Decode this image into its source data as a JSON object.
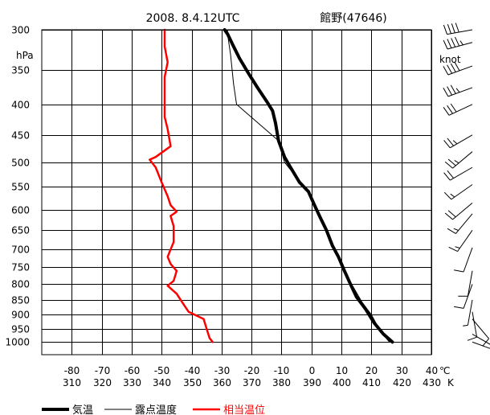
{
  "chart_data": {
    "type": "line",
    "title": "2008. 8.4.12UTC",
    "station": "館野(47646)",
    "y_unit": "hPa",
    "y_scale": "log",
    "ylim": [
      1050,
      300
    ],
    "y_ticks": [
      300,
      350,
      400,
      450,
      500,
      550,
      600,
      650,
      700,
      750,
      800,
      850,
      900,
      950,
      1000
    ],
    "x_unit_celsius": "℃",
    "x_unit_kelvin": "K",
    "xlim": [
      -90,
      40
    ],
    "x_ticks_celsius": [
      -80,
      -70,
      -60,
      -50,
      -40,
      -30,
      -20,
      -10,
      0,
      10,
      20,
      30,
      40
    ],
    "x_ticks_kelvin": [
      310,
      320,
      330,
      340,
      350,
      360,
      370,
      380,
      390,
      400,
      410,
      420,
      430
    ],
    "wind_unit": "knot",
    "grid": true,
    "legend_position": "bottom",
    "series": [
      {
        "name": "気温",
        "color": "#000000",
        "style": "thick",
        "scale": "celsius",
        "points": [
          [
            27,
            1000
          ],
          [
            24,
            970
          ],
          [
            21,
            930
          ],
          [
            18,
            880
          ],
          [
            15,
            840
          ],
          [
            13,
            800
          ],
          [
            11,
            760
          ],
          [
            9,
            720
          ],
          [
            7,
            690
          ],
          [
            5,
            650
          ],
          [
            3,
            620
          ],
          [
            1,
            590
          ],
          [
            -1,
            560
          ],
          [
            -4,
            540
          ],
          [
            -7,
            510
          ],
          [
            -9,
            490
          ],
          [
            -11,
            460
          ],
          [
            -12,
            430
          ],
          [
            -13,
            410
          ],
          [
            -15,
            395
          ],
          [
            -18,
            375
          ],
          [
            -21,
            355
          ],
          [
            -24,
            335
          ],
          [
            -26,
            320
          ],
          [
            -28,
            305
          ],
          [
            -29,
            300
          ]
        ]
      },
      {
        "name": "露点温度",
        "color": "#000000",
        "style": "thin",
        "scale": "celsius",
        "points": [
          [
            26,
            1000
          ],
          [
            23,
            960
          ],
          [
            20,
            900
          ],
          [
            17,
            860
          ],
          [
            14,
            810
          ],
          [
            12,
            780
          ],
          [
            10,
            740
          ],
          [
            8,
            700
          ],
          [
            6,
            670
          ],
          [
            4,
            640
          ],
          [
            2,
            600
          ],
          [
            0,
            570
          ],
          [
            -2,
            550
          ],
          [
            -5,
            530
          ],
          [
            -9,
            500
          ],
          [
            -10,
            480
          ],
          [
            -10,
            465
          ],
          [
            -25,
            400
          ],
          [
            -26,
            370
          ],
          [
            -27,
            330
          ],
          [
            -28,
            305
          ],
          [
            -28,
            300
          ]
        ]
      },
      {
        "name": "相当温位",
        "color": "#ff0000",
        "style": "medium",
        "scale": "kelvin",
        "points": [
          [
            357,
            1000
          ],
          [
            356,
            985
          ],
          [
            355,
            950
          ],
          [
            354,
            915
          ],
          [
            349,
            890
          ],
          [
            347,
            860
          ],
          [
            345,
            830
          ],
          [
            342,
            805
          ],
          [
            344,
            790
          ],
          [
            345,
            760
          ],
          [
            343,
            740
          ],
          [
            342,
            720
          ],
          [
            343,
            700
          ],
          [
            344,
            680
          ],
          [
            344,
            660
          ],
          [
            344,
            640
          ],
          [
            343,
            615
          ],
          [
            345,
            605
          ],
          [
            343,
            590
          ],
          [
            342,
            570
          ],
          [
            340,
            540
          ],
          [
            338,
            510
          ],
          [
            336,
            495
          ],
          [
            338,
            490
          ],
          [
            343,
            470
          ],
          [
            342,
            440
          ],
          [
            341,
            420
          ],
          [
            341,
            390
          ],
          [
            341,
            360
          ],
          [
            342,
            340
          ],
          [
            341,
            320
          ],
          [
            341,
            300
          ]
        ]
      }
    ],
    "wind_barbs": [
      {
        "p": 300,
        "dir": 260,
        "kt": 40
      },
      {
        "p": 315,
        "dir": 255,
        "kt": 45
      },
      {
        "p": 345,
        "dir": 250,
        "kt": 40
      },
      {
        "p": 375,
        "dir": 250,
        "kt": 35
      },
      {
        "p": 400,
        "dir": 245,
        "kt": 30
      },
      {
        "p": 450,
        "dir": 240,
        "kt": 25
      },
      {
        "p": 480,
        "dir": 230,
        "kt": 25
      },
      {
        "p": 510,
        "dir": 240,
        "kt": 20
      },
      {
        "p": 545,
        "dir": 235,
        "kt": 15
      },
      {
        "p": 585,
        "dir": 230,
        "kt": 20
      },
      {
        "p": 610,
        "dir": 220,
        "kt": 15
      },
      {
        "p": 650,
        "dir": 215,
        "kt": 15
      },
      {
        "p": 695,
        "dir": 200,
        "kt": 10
      },
      {
        "p": 760,
        "dir": 190,
        "kt": 10
      },
      {
        "p": 800,
        "dir": 200,
        "kt": 10
      },
      {
        "p": 850,
        "dir": 190,
        "kt": 5
      },
      {
        "p": 890,
        "dir": 170,
        "kt": 10
      },
      {
        "p": 915,
        "dir": 140,
        "kt": 10
      },
      {
        "p": 970,
        "dir": 120,
        "kt": 5
      },
      {
        "p": 1000,
        "dir": 110,
        "kt": 5
      }
    ]
  }
}
